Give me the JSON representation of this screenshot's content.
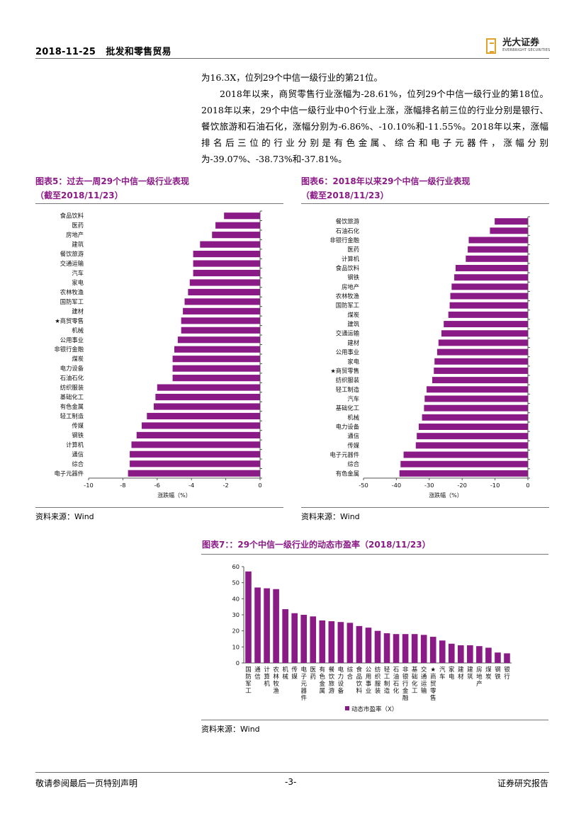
{
  "header": {
    "date": "2018-11-25",
    "report_title": "批发和零售贸易",
    "logo_text": "光大证券",
    "logo_en": "EVERBRIGHT SECURITIES"
  },
  "body": {
    "line1": "为16.3X，位列29个中信一级行业的第21位。",
    "para2": "2018年以来，商贸零售行业涨幅为-28.61%，位列29个中信一级行业的第18位。2018年以来，29个中信一级行业中0个行业上涨，涨幅排名前三位的行业分别是银行、餐饮旅游和石油石化，涨幅分别为-6.86%、-10.10%和-11.55%。2018年以来，涨幅排名后三位的行业分别是有色金属、综合和电子元器件，涨幅分别为-39.07%、-38.73%和-37.81%。"
  },
  "figures": {
    "fig5_title_line1": "图表5：过去一周29个中信一级行业表现",
    "fig5_title_line2": "（截至2018/11/23）",
    "fig6_title_line1": "图表6：2018年以来29个中信一级行业表现",
    "fig6_title_line2": "（截至2018/11/23）",
    "fig7_title": "图表7：：29个中信一级行业的动态市盈率（2018/11/23）",
    "source": "资料来源：Wind"
  },
  "chart_data": [
    {
      "type": "bar",
      "orientation": "horizontal",
      "categories": [
        "食品饮料",
        "医药",
        "房地产",
        "建筑",
        "餐饮旅游",
        "交通运输",
        "汽车",
        "家电",
        "农林牧渔",
        "国防军工",
        "建材",
        "★商贸零售",
        "机械",
        "公用事业",
        "非银行金融",
        "煤炭",
        "电力设备",
        "石油石化",
        "纺织服装",
        "基础化工",
        "有色金属",
        "轻工制造",
        "传媒",
        "钢铁",
        "计算机",
        "通信",
        "综合",
        "电子元器件"
      ],
      "values": [
        -2.1,
        -2.6,
        -2.8,
        -3.5,
        -3.9,
        -3.9,
        -3.9,
        -4.1,
        -4.2,
        -4.4,
        -4.5,
        -4.6,
        -4.6,
        -4.8,
        -5.0,
        -5.1,
        -5.1,
        -5.1,
        -6.0,
        -6.1,
        -6.2,
        -6.6,
        -6.9,
        -7.2,
        -7.5,
        -7.6,
        -7.6,
        -7.7
      ],
      "xlim": [
        -10,
        0
      ],
      "xticks": [
        "-10",
        "-8",
        "-6",
        "-4",
        "-2",
        "0"
      ],
      "xlabel": "涨跌幅（%）",
      "color": "#8a1a86"
    },
    {
      "type": "bar",
      "orientation": "horizontal",
      "categories": [
        "餐饮旅游",
        "石油石化",
        "非银行金融",
        "医药",
        "计算机",
        "食品饮料",
        "钢铁",
        "房地产",
        "农林牧渔",
        "国防军工",
        "煤炭",
        "建筑",
        "交通运输",
        "建材",
        "公用事业",
        "家电",
        "★商贸零售",
        "纺织服装",
        "轻工制造",
        "汽车",
        "基础化工",
        "机械",
        "电力设备",
        "通信",
        "传媒",
        "电子元器件",
        "综合",
        "有色金属"
      ],
      "values": [
        -10.1,
        -11.55,
        -18.0,
        -18.3,
        -18.9,
        -22.0,
        -22.4,
        -23.2,
        -23.6,
        -23.8,
        -24.2,
        -25.6,
        -26.3,
        -27.2,
        -27.6,
        -28.4,
        -28.61,
        -29.1,
        -30.8,
        -31.4,
        -31.6,
        -32.2,
        -33.2,
        -33.8,
        -34.1,
        -37.81,
        -38.73,
        -39.07
      ],
      "xlim": [
        -50,
        0
      ],
      "xticks": [
        "-50",
        "-40",
        "-30",
        "-20",
        "-10",
        "0"
      ],
      "xlabel": "涨跌幅（%）",
      "color": "#8a1a86"
    },
    {
      "type": "bar",
      "orientation": "vertical",
      "categories": [
        "国防军工",
        "通信",
        "计算机",
        "农林牧渔",
        "机械",
        "传媒",
        "电子元器件",
        "医药",
        "有色金属",
        "餐饮旅游",
        "电力设备",
        "综合",
        "食品饮料",
        "公用事业",
        "纺织服装",
        "轻工制造",
        "石油石化",
        "非银行金融",
        "基础化工",
        "交通运输",
        "★商贸零售",
        "汽车",
        "家电",
        "建材",
        "建筑",
        "房地产",
        "煤炭",
        "钢铁",
        "银行"
      ],
      "series": [
        {
          "name": "动态市盈率（X）",
          "values": [
            57,
            47,
            46.5,
            46,
            33.5,
            31,
            30,
            29,
            26.5,
            26,
            25.5,
            25,
            23,
            22,
            20,
            18.5,
            18,
            18,
            18,
            17.5,
            16.3,
            14,
            12,
            11,
            11,
            10.5,
            9.5,
            6.5,
            6
          ]
        }
      ],
      "ylim": [
        0,
        60
      ],
      "yticks": [
        "0",
        "10",
        "20",
        "30",
        "40",
        "50",
        "60"
      ],
      "legend": "bottom",
      "color": "#8a1a86"
    }
  ],
  "footer": {
    "disclaimer": "敬请参阅最后一页特别声明",
    "page": "-3-",
    "report_type": "证券研究报告"
  }
}
